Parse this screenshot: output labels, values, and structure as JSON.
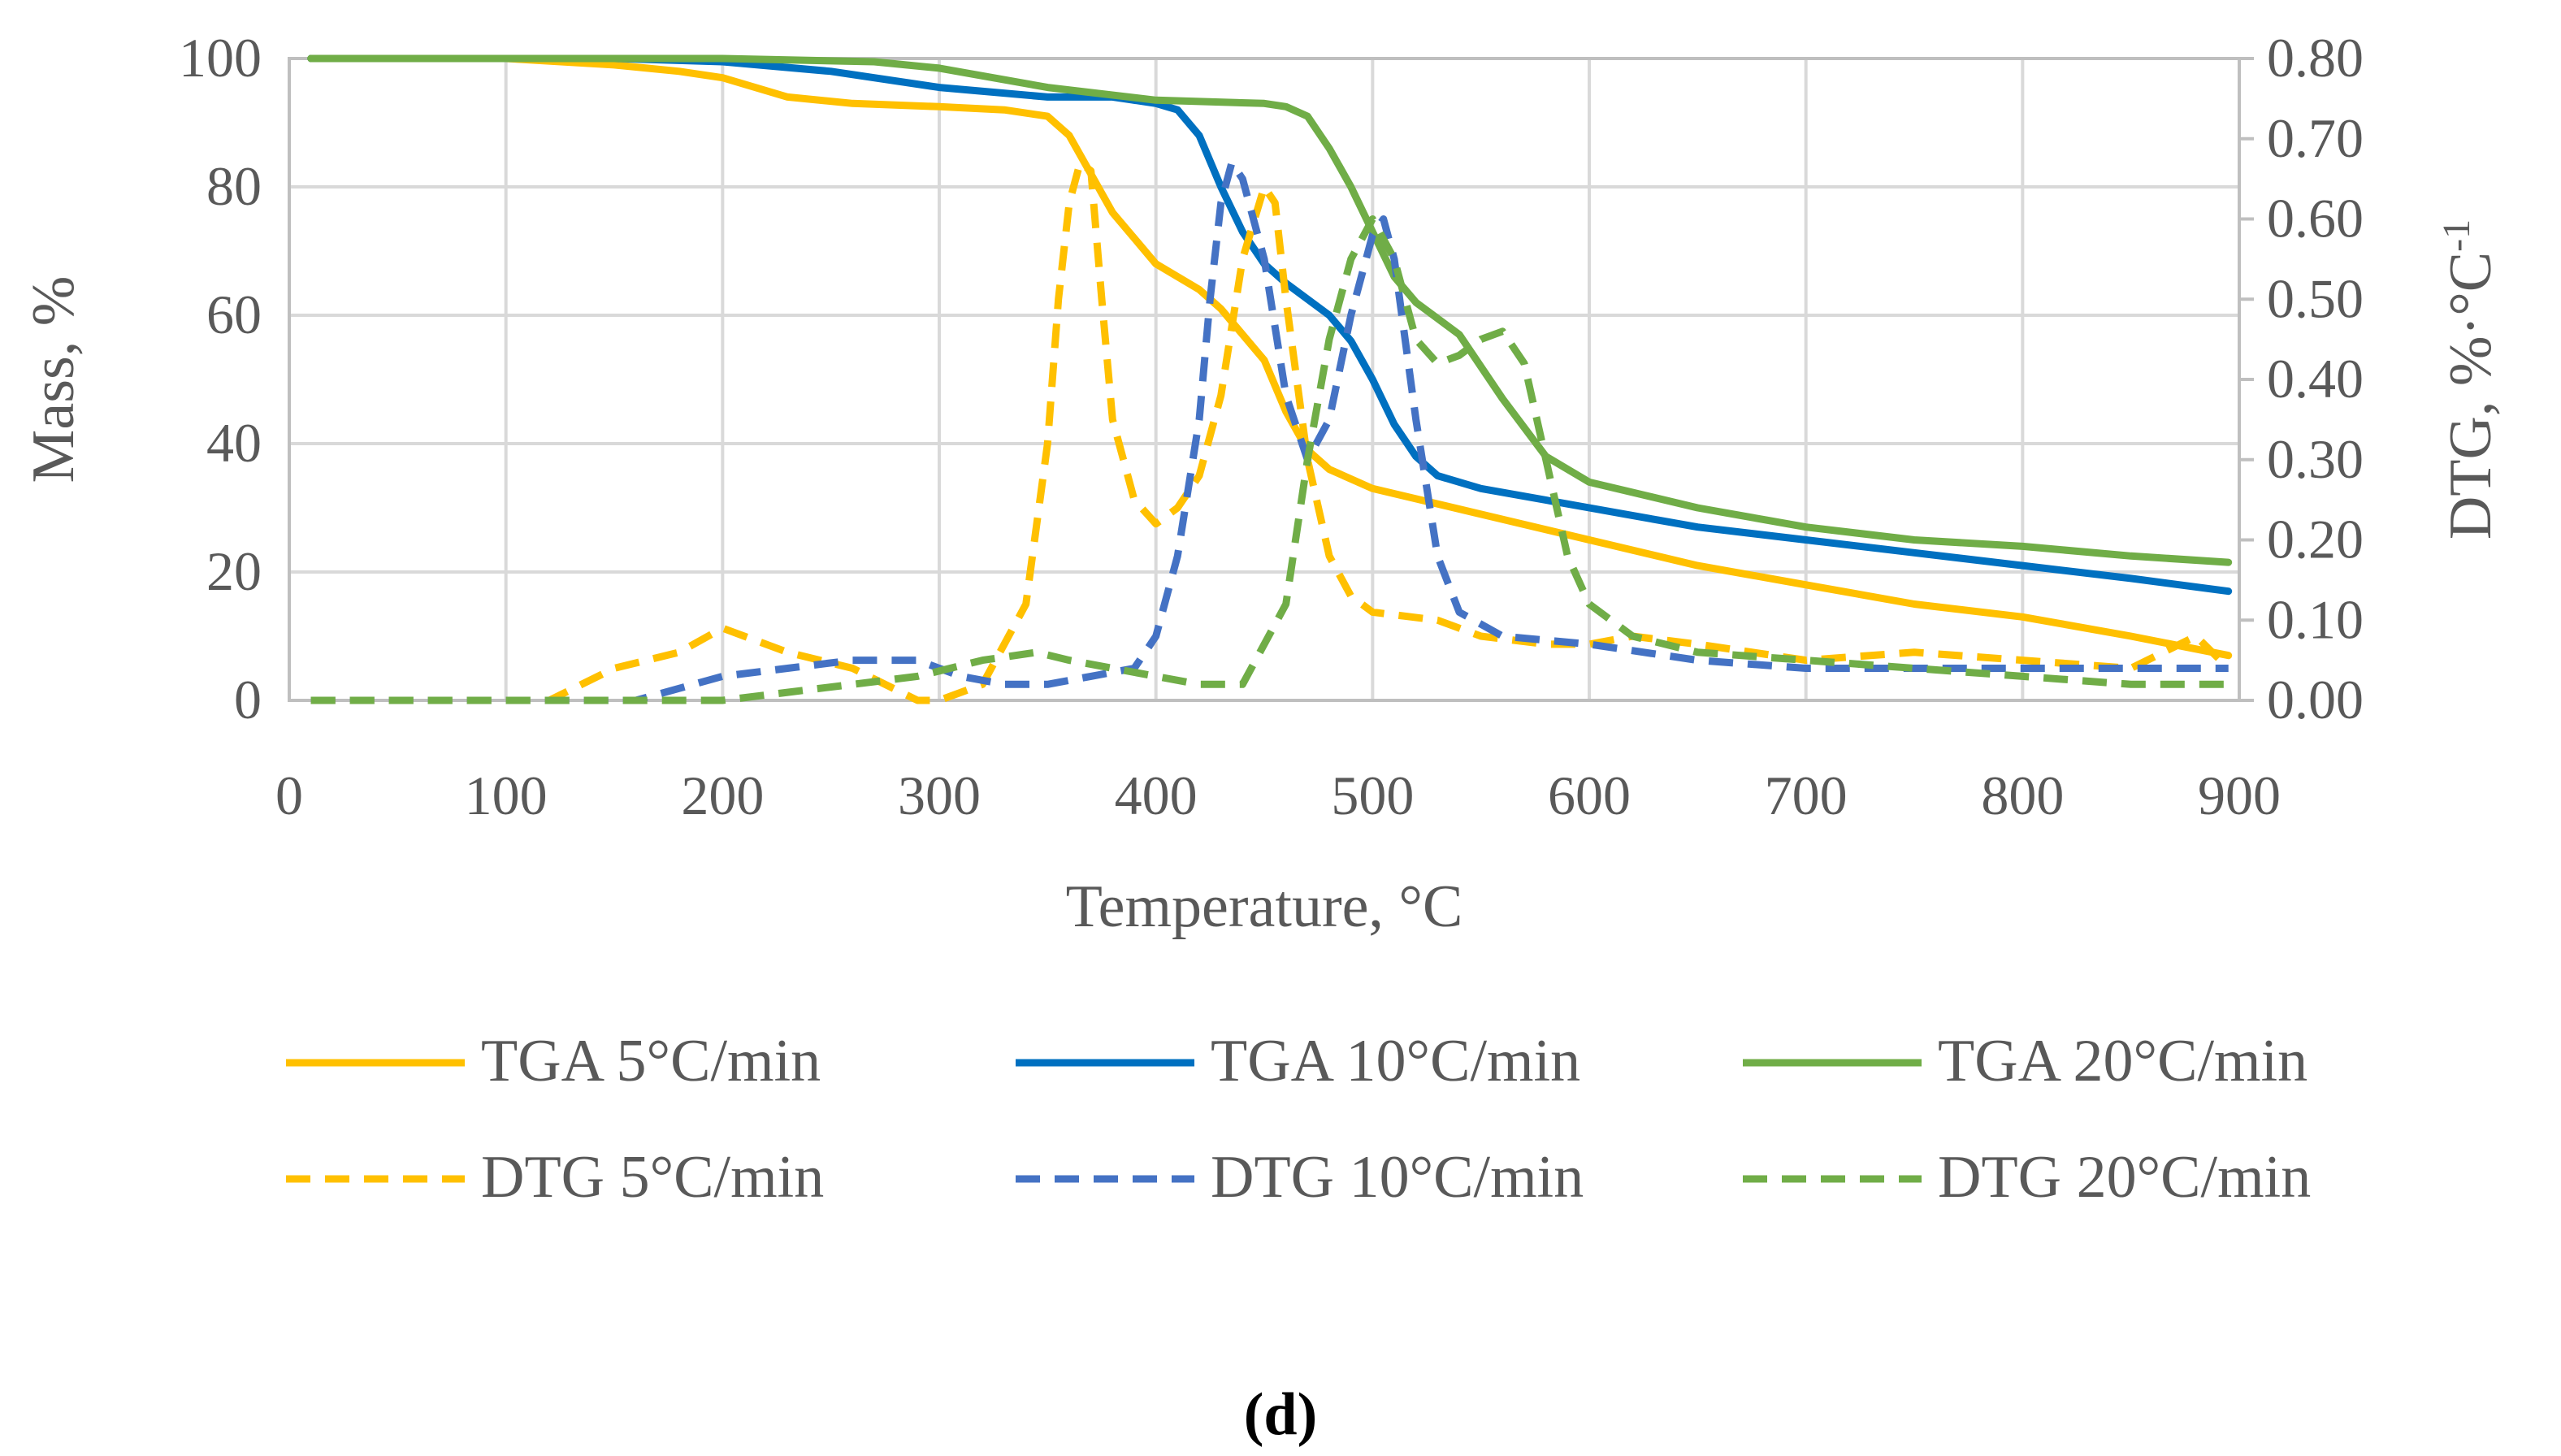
{
  "caption": "(d)",
  "chart_data": {
    "type": "line",
    "xlabel": "Temperature, °C",
    "ylabel": "Mass, %",
    "y2label_main": "DTG, %·°C",
    "y2label_sup": "-1",
    "xlim": [
      0,
      900
    ],
    "ylim": [
      0,
      100
    ],
    "y2lim": [
      0,
      0.8
    ],
    "grid": true,
    "legend_position": "bottom",
    "x_ticks": [
      "0",
      "100",
      "200",
      "300",
      "400",
      "500",
      "600",
      "700",
      "800",
      "900"
    ],
    "y_ticks": [
      "0",
      "20",
      "40",
      "60",
      "80",
      "100"
    ],
    "y2_ticks": [
      "0.00",
      "0.10",
      "0.20",
      "0.30",
      "0.40",
      "0.50",
      "0.60",
      "0.70",
      "0.80"
    ],
    "series": [
      {
        "name": "TGA 5°C/min",
        "axis": "left",
        "style": "solid",
        "color": "#FFC000",
        "x": [
          10,
          100,
          150,
          180,
          200,
          230,
          260,
          300,
          330,
          350,
          360,
          370,
          380,
          400,
          420,
          430,
          440,
          450,
          460,
          470,
          480,
          500,
          550,
          600,
          650,
          700,
          750,
          800,
          850,
          895
        ],
        "y": [
          100,
          100,
          99,
          98,
          97,
          94,
          93,
          92.5,
          92,
          91,
          88,
          82,
          76,
          68,
          64,
          61,
          57,
          53,
          45,
          39,
          36,
          33,
          29,
          25,
          21,
          18,
          15,
          13,
          10,
          7
        ]
      },
      {
        "name": "TGA 10°C/min",
        "axis": "left",
        "style": "solid",
        "color": "#0070C0",
        "x": [
          10,
          150,
          200,
          250,
          300,
          350,
          380,
          400,
          410,
          420,
          430,
          440,
          450,
          460,
          480,
          490,
          500,
          510,
          520,
          530,
          550,
          600,
          650,
          700,
          750,
          800,
          850,
          895
        ],
        "y": [
          100,
          100,
          99.5,
          98,
          95.5,
          94,
          94,
          93,
          92,
          88,
          80,
          73,
          68,
          65,
          60,
          56,
          50,
          43,
          38,
          35,
          33,
          30,
          27,
          25,
          23,
          21,
          19,
          17
        ]
      },
      {
        "name": "TGA 20°C/min",
        "axis": "left",
        "style": "solid",
        "color": "#70AD47",
        "x": [
          10,
          200,
          270,
          300,
          350,
          400,
          450,
          460,
          470,
          480,
          490,
          500,
          510,
          520,
          540,
          560,
          580,
          600,
          650,
          700,
          750,
          800,
          850,
          895
        ],
        "y": [
          100,
          100,
          99.5,
          98.5,
          95.5,
          93.5,
          93,
          92.5,
          91,
          86,
          80,
          73,
          66,
          62,
          57,
          47,
          38,
          34,
          30,
          27,
          25,
          24,
          22.5,
          21.5
        ]
      },
      {
        "name": "DTG 5°C/min",
        "axis": "right",
        "style": "dashed",
        "color": "#FFC000",
        "x": [
          10,
          120,
          150,
          180,
          200,
          230,
          260,
          290,
          300,
          320,
          340,
          350,
          355,
          360,
          365,
          370,
          375,
          380,
          390,
          400,
          410,
          420,
          430,
          440,
          450,
          455,
          460,
          470,
          480,
          490,
          500,
          530,
          550,
          580,
          600,
          620,
          650,
          700,
          750,
          800,
          850,
          880,
          895
        ],
        "y": [
          0.0,
          0.0,
          0.04,
          0.06,
          0.09,
          0.06,
          0.04,
          0.0,
          0.0,
          0.02,
          0.12,
          0.32,
          0.5,
          0.62,
          0.67,
          0.66,
          0.5,
          0.35,
          0.25,
          0.22,
          0.24,
          0.28,
          0.38,
          0.55,
          0.64,
          0.62,
          0.5,
          0.3,
          0.18,
          0.13,
          0.11,
          0.1,
          0.08,
          0.07,
          0.07,
          0.08,
          0.07,
          0.05,
          0.06,
          0.05,
          0.04,
          0.08,
          0.04
        ]
      },
      {
        "name": "DTG 10°C/min",
        "axis": "right",
        "style": "dashed",
        "color": "#4472C4",
        "x": [
          10,
          160,
          200,
          230,
          260,
          290,
          310,
          330,
          350,
          370,
          390,
          400,
          410,
          420,
          425,
          430,
          435,
          440,
          450,
          460,
          470,
          480,
          490,
          500,
          505,
          510,
          520,
          530,
          540,
          560,
          600,
          650,
          700,
          750,
          800,
          850,
          895
        ],
        "y": [
          0.0,
          0.0,
          0.03,
          0.04,
          0.05,
          0.05,
          0.03,
          0.02,
          0.02,
          0.03,
          0.04,
          0.08,
          0.18,
          0.35,
          0.5,
          0.62,
          0.67,
          0.65,
          0.55,
          0.38,
          0.3,
          0.35,
          0.48,
          0.58,
          0.6,
          0.55,
          0.35,
          0.18,
          0.11,
          0.08,
          0.07,
          0.05,
          0.04,
          0.04,
          0.04,
          0.04,
          0.04
        ]
      },
      {
        "name": "DTG 20°C/min",
        "axis": "right",
        "style": "dashed",
        "color": "#70AD47",
        "x": [
          10,
          200,
          230,
          260,
          290,
          320,
          345,
          360,
          380,
          400,
          420,
          440,
          460,
          470,
          480,
          490,
          500,
          510,
          520,
          530,
          540,
          550,
          560,
          570,
          580,
          590,
          600,
          620,
          650,
          700,
          750,
          800,
          850,
          895
        ],
        "y": [
          0.0,
          0.0,
          0.01,
          0.02,
          0.03,
          0.05,
          0.06,
          0.05,
          0.04,
          0.03,
          0.02,
          0.02,
          0.12,
          0.3,
          0.45,
          0.55,
          0.6,
          0.55,
          0.45,
          0.42,
          0.43,
          0.45,
          0.46,
          0.42,
          0.3,
          0.18,
          0.12,
          0.08,
          0.06,
          0.05,
          0.04,
          0.03,
          0.02,
          0.02
        ]
      }
    ]
  }
}
